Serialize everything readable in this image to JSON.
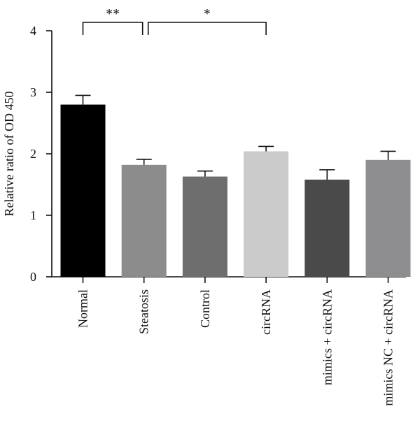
{
  "chart_data": {
    "type": "bar",
    "categories": [
      "Normal",
      "Steatosis",
      "Control",
      "circRNA",
      "mimics + circRNA",
      "mimics NC + circRNA"
    ],
    "values": [
      2.8,
      1.82,
      1.63,
      2.04,
      1.58,
      1.9
    ],
    "errors": [
      0.15,
      0.09,
      0.09,
      0.08,
      0.16,
      0.14
    ],
    "bar_colors": [
      "#000000",
      "#8c8c8c",
      "#6e6e6e",
      "#cbcbcb",
      "#4a4a4a",
      "#8e8e90"
    ],
    "xlabel": "",
    "ylabel": "Relative ratio of OD 450",
    "ylim": [
      0,
      4
    ],
    "yticks": [
      0,
      1,
      2,
      3,
      4
    ],
    "grid": false,
    "significance": [
      {
        "from": 0,
        "to": 1,
        "label": "**"
      },
      {
        "from": 1,
        "to": 3,
        "label": "*"
      }
    ]
  }
}
